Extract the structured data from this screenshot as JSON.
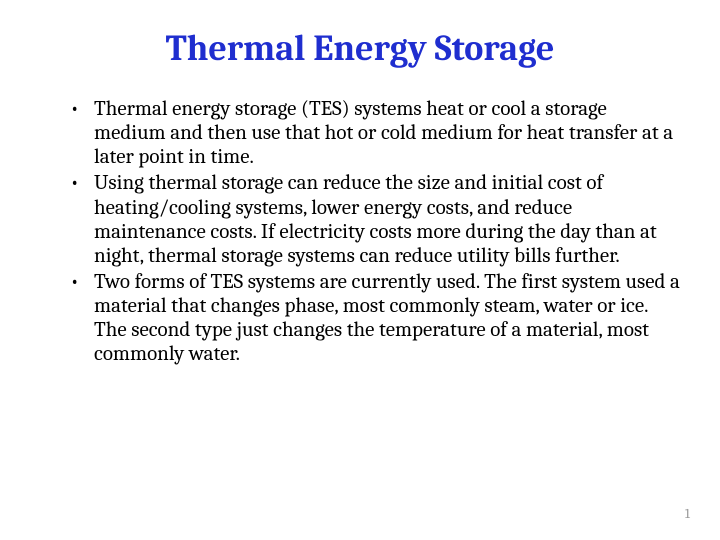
{
  "slide": {
    "title": "Thermal Energy Storage",
    "title_color": "#1f2ecf",
    "title_fontsize": 36,
    "body_color": "#000000",
    "body_fontsize": 21,
    "line_height": 1.15,
    "bullets": [
      "Thermal energy storage (TES) systems heat or cool a storage medium and then use that hot or cold medium for heat transfer at a later point in time.",
      "Using thermal storage can reduce the size and initial cost of heating/cooling systems, lower energy costs, and reduce maintenance costs. If electricity costs more during the day than at night, thermal storage systems can reduce utility bills further.",
      "Two forms of TES systems are currently used.  The first system used a material that changes phase, most commonly steam, water or ice.  The second type just changes the temperature of a material, most commonly water."
    ],
    "page_number": "1",
    "page_number_color": "#9a9a9a",
    "page_number_fontsize": 14,
    "background_color": "#ffffff"
  }
}
